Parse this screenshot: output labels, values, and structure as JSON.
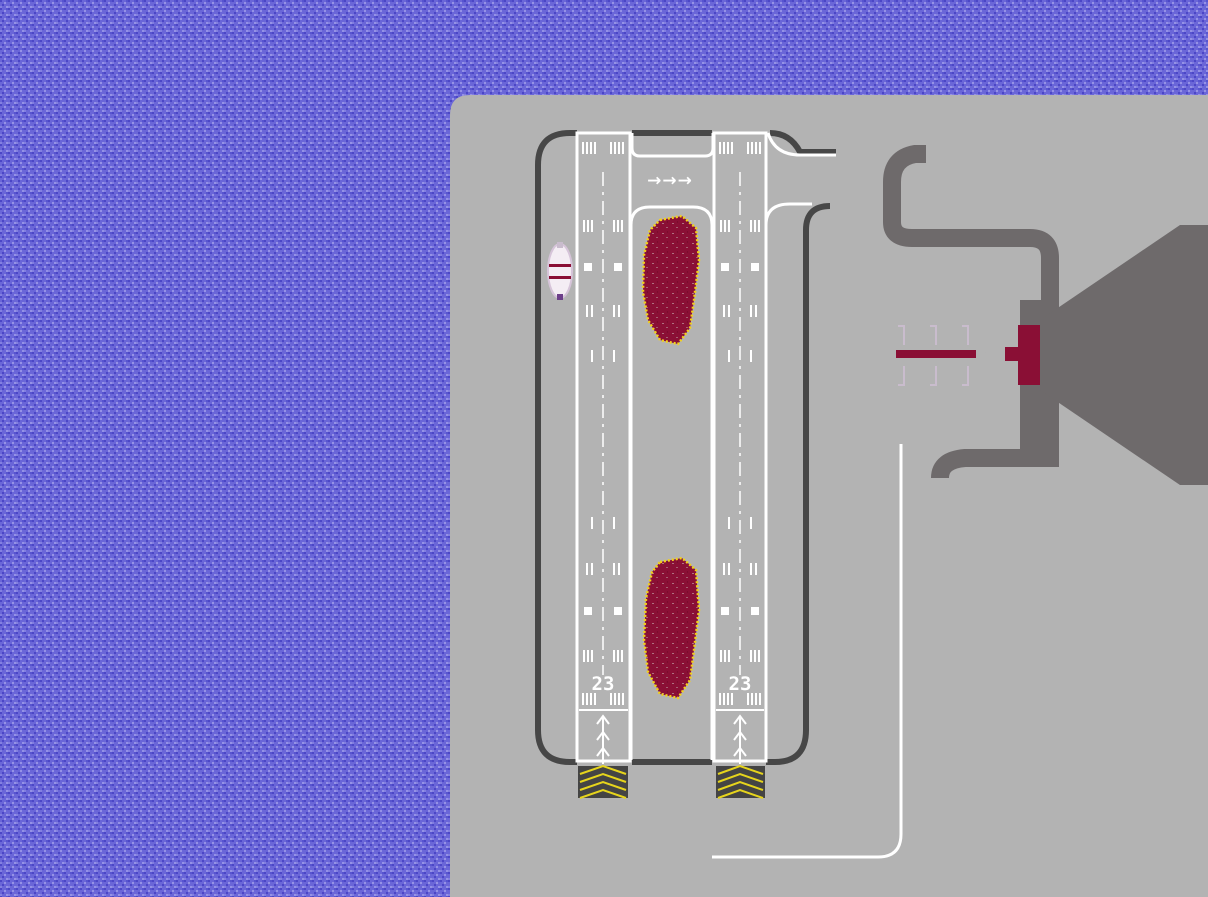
{
  "colors": {
    "water_base": "#6a66d8",
    "water_dark": "#4b46c6",
    "water_light": "#9592e6",
    "ground": "#b3b3b3",
    "taxiway": "#474747",
    "terminal": "#6e6a6b",
    "marking": "#ffffff",
    "hazard_fill": "#8a0f35",
    "hazard_outline": "#f3d11a",
    "threshold_chevron": "#e6d41c",
    "aircraft_accent": "#8a0f35"
  },
  "runways": [
    {
      "id": "left",
      "number_label": "23",
      "arrows": "→→→",
      "hazard": "crater-top",
      "threshold": "chevron-block"
    },
    {
      "id": "right",
      "number_label": "23",
      "hazard": "crater-bottom",
      "threshold": "chevron-block"
    }
  ],
  "icons": {
    "aircraft": "parked-plane-icon",
    "hazard": "crater-icon",
    "terminal_aircraft": "terminal-plane-icon"
  }
}
